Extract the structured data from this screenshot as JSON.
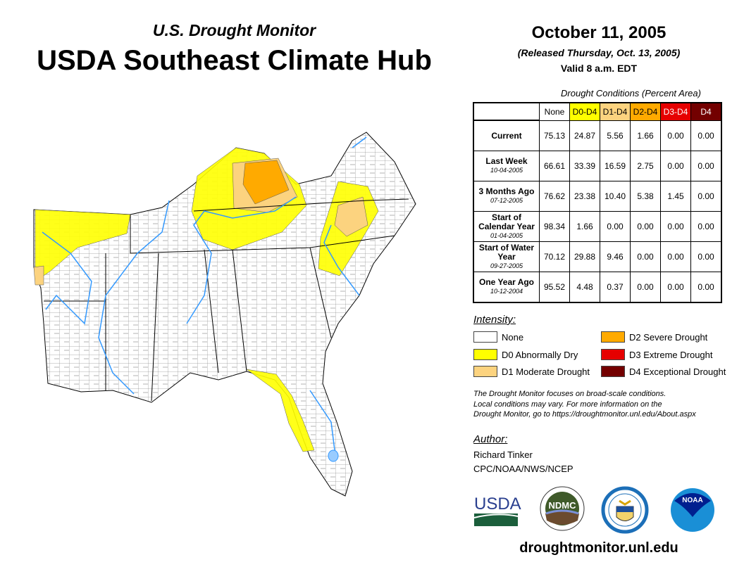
{
  "header": {
    "subtitle": "U.S. Drought Monitor",
    "title": "USDA Southeast Climate Hub",
    "date": "October 11, 2005",
    "released": "(Released Thursday, Oct. 13, 2005)",
    "valid": "Valid 8 a.m. EDT"
  },
  "table": {
    "caption": "Drought Conditions (Percent Area)",
    "columns": [
      {
        "label": "None",
        "color": "#ffffff",
        "text": "#000"
      },
      {
        "label": "D0-D4",
        "color": "#ffff00",
        "text": "#000"
      },
      {
        "label": "D1-D4",
        "color": "#fcd37f",
        "text": "#000"
      },
      {
        "label": "D2-D4",
        "color": "#ffaa00",
        "text": "#000"
      },
      {
        "label": "D3-D4",
        "color": "#e60000",
        "text": "#fff"
      },
      {
        "label": "D4",
        "color": "#730000",
        "text": "#fff"
      }
    ],
    "rows": [
      {
        "label": "Current",
        "date": "",
        "values": [
          "75.13",
          "24.87",
          "5.56",
          "1.66",
          "0.00",
          "0.00"
        ]
      },
      {
        "label": "Last Week",
        "date": "10-04-2005",
        "values": [
          "66.61",
          "33.39",
          "16.59",
          "2.75",
          "0.00",
          "0.00"
        ]
      },
      {
        "label": "3 Months Ago",
        "date": "07-12-2005",
        "values": [
          "76.62",
          "23.38",
          "10.40",
          "5.38",
          "1.45",
          "0.00"
        ]
      },
      {
        "label": "Start of Calendar Year",
        "date": "01-04-2005",
        "values": [
          "98.34",
          "1.66",
          "0.00",
          "0.00",
          "0.00",
          "0.00"
        ]
      },
      {
        "label": "Start of Water Year",
        "date": "09-27-2005",
        "values": [
          "70.12",
          "29.88",
          "9.46",
          "0.00",
          "0.00",
          "0.00"
        ]
      },
      {
        "label": "One Year Ago",
        "date": "10-12-2004",
        "values": [
          "95.52",
          "4.48",
          "0.37",
          "0.00",
          "0.00",
          "0.00"
        ]
      }
    ]
  },
  "legend": {
    "title": "Intensity:",
    "items": [
      {
        "label": "None",
        "color": "#ffffff"
      },
      {
        "label": "D0 Abnormally Dry",
        "color": "#ffff00"
      },
      {
        "label": "D1 Moderate Drought",
        "color": "#fcd37f"
      },
      {
        "label": "D2 Severe Drought",
        "color": "#ffaa00"
      },
      {
        "label": "D3 Extreme Drought",
        "color": "#e60000"
      },
      {
        "label": "D4 Exceptional Drought",
        "color": "#730000"
      }
    ]
  },
  "note": [
    "The Drought Monitor focuses on broad-scale conditions.",
    "Local conditions may vary. For more information on the",
    "Drought Monitor, go to https://droughtmonitor.unl.edu/About.aspx"
  ],
  "author": {
    "title": "Author:",
    "name": "Richard Tinker",
    "org": "CPC/NOAA/NWS/NCEP"
  },
  "logos": {
    "usda": "USDA",
    "ndmc": "NDMC",
    "noaa": "NOAA"
  },
  "footer_url": "droughtmonitor.unl.edu"
}
